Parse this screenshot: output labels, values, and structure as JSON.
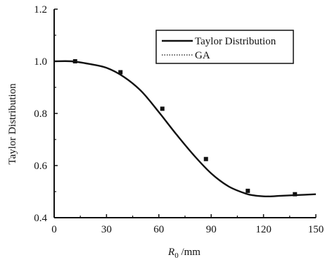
{
  "chart_data": {
    "type": "line",
    "xlabel_italic": "R",
    "xlabel_sub": "0",
    "xlabel_unit": " /mm",
    "ylabel": "Taylor Distribution",
    "xlim": [
      0,
      150
    ],
    "ylim": [
      0.4,
      1.2
    ],
    "x_ticks": [
      "0",
      "30",
      "60",
      "90",
      "120",
      "150"
    ],
    "y_ticks": [
      "0.4",
      "0.6",
      "0.8",
      "1.0",
      "1.2"
    ],
    "x_tick_values": [
      0,
      30,
      60,
      90,
      120,
      150
    ],
    "y_tick_values": [
      0.4,
      0.6,
      0.8,
      1.0,
      1.2
    ],
    "grid": false,
    "legend_position": "top-right",
    "series": [
      {
        "name": "Taylor Distribution",
        "style": "solid",
        "x": [
          0,
          10,
          20,
          30,
          40,
          50,
          60,
          70,
          80,
          90,
          100,
          110,
          115,
          120,
          125,
          130,
          140,
          150
        ],
        "y": [
          1.0,
          1.0,
          0.99,
          0.975,
          0.94,
          0.885,
          0.805,
          0.72,
          0.64,
          0.57,
          0.52,
          0.492,
          0.485,
          0.482,
          0.482,
          0.484,
          0.487,
          0.49
        ]
      },
      {
        "name": "GA",
        "style": "dotted",
        "x": [
          12,
          38,
          62,
          87,
          111,
          138
        ],
        "y": [
          1.0,
          0.958,
          0.818,
          0.625,
          0.503,
          0.49
        ]
      }
    ]
  }
}
